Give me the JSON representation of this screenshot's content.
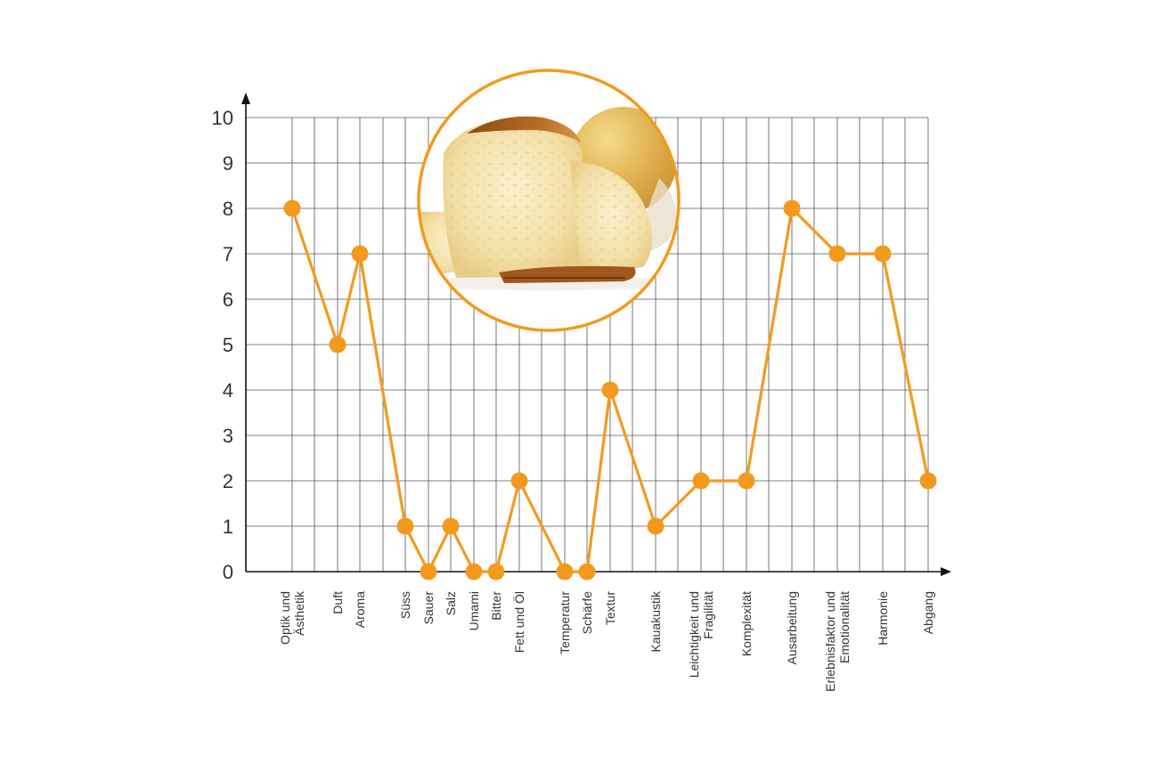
{
  "chart_data": {
    "type": "line",
    "title": "",
    "xlabel": "",
    "ylabel": "",
    "ylim": [
      0,
      10
    ],
    "yticks": [
      "0",
      "1",
      "2",
      "3",
      "4",
      "5",
      "6",
      "7",
      "8",
      "9",
      "10"
    ],
    "grid": true,
    "legend": "none",
    "colors": {
      "series": "#F39A1E",
      "grid": "#555555",
      "axis": "#111111"
    },
    "categories": [
      [
        "Optik und",
        "Ästhetik"
      ],
      [
        "Duft"
      ],
      [
        "Aroma"
      ],
      [
        "Süss"
      ],
      [
        "Sauer"
      ],
      [
        "Salz"
      ],
      [
        "Umami"
      ],
      [
        "Bitter"
      ],
      [
        "Fett und Öl"
      ],
      [
        "Temperatur"
      ],
      [
        "Schärfe"
      ],
      [
        "Textur"
      ],
      [
        "Kauakustik"
      ],
      [
        "Leichtigkeit und",
        "Fragilität"
      ],
      [
        "Komplexität"
      ],
      [
        "Ausarbeitung"
      ],
      [
        "Erlebnisfaktor und",
        "Emotionalität"
      ],
      [
        "Harmonie"
      ],
      [
        "Abgang"
      ]
    ],
    "series": [
      {
        "values": [
          8,
          5,
          7,
          1,
          0,
          1,
          0,
          0,
          2,
          0,
          0,
          4,
          1,
          2,
          2,
          8,
          7,
          7,
          2
        ]
      }
    ],
    "inset_image": "bread-photo"
  }
}
